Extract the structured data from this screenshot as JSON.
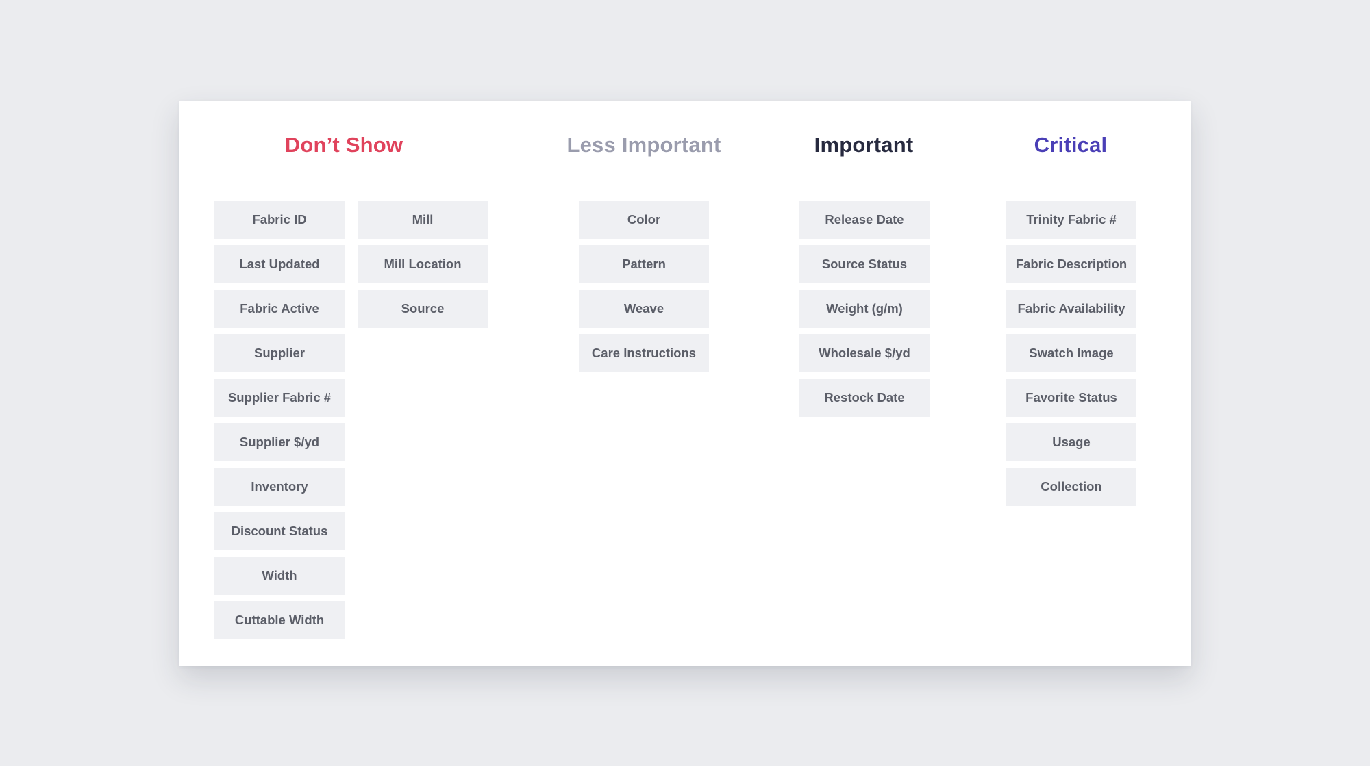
{
  "colors": {
    "dont_show": "#e0435c",
    "less_important": "#9a9cad",
    "important": "#272a3f",
    "critical": "#4a3fb6"
  },
  "columns": {
    "dont_show": {
      "title": "Don’t Show",
      "items_a": [
        "Fabric ID",
        "Last Updated",
        "Fabric Active",
        "Supplier",
        "Supplier Fabric #",
        "Supplier $/yd",
        "Inventory",
        "Discount Status",
        "Width",
        "Cuttable Width"
      ],
      "items_b": [
        "Mill",
        "Mill Location",
        "Source"
      ]
    },
    "less_important": {
      "title": "Less Important",
      "items": [
        "Color",
        "Pattern",
        "Weave",
        "Care Instructions"
      ]
    },
    "important": {
      "title": "Important",
      "items": [
        "Release Date",
        "Source Status",
        "Weight (g/m)",
        "Wholesale $/yd",
        "Restock Date"
      ]
    },
    "critical": {
      "title": "Critical",
      "items": [
        "Trinity Fabric #",
        "Fabric Description",
        "Fabric Availability",
        "Swatch Image",
        "Favorite Status",
        "Usage",
        "Collection"
      ]
    }
  }
}
